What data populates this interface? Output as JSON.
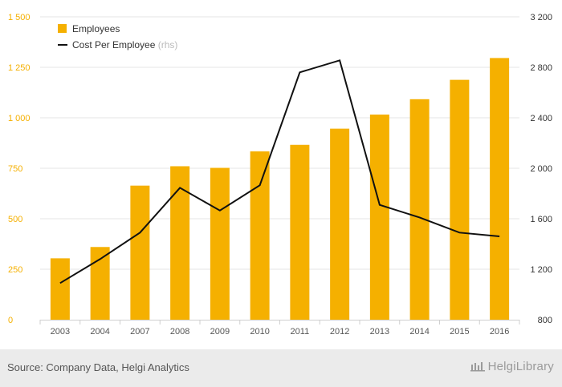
{
  "chart_data": {
    "type": "bar",
    "categories": [
      "2003",
      "2004",
      "2007",
      "2008",
      "2009",
      "2010",
      "2011",
      "2012",
      "2013",
      "2014",
      "2015",
      "2016"
    ],
    "series": [
      {
        "name": "Employees",
        "kind": "bar",
        "axis": "left",
        "values": [
          304,
          360,
          664,
          760,
          752,
          834,
          866,
          946,
          1016,
          1092,
          1188,
          1296
        ]
      },
      {
        "name": "Cost Per Employee",
        "kind": "line",
        "axis": "right",
        "values": [
          1090,
          1280,
          1490,
          1845,
          1665,
          1865,
          2760,
          2855,
          1710,
          1610,
          1490,
          1460
        ]
      }
    ],
    "legend": {
      "entries": [
        "Employees",
        "Cost Per Employee"
      ],
      "rhs_note": "(rhs)",
      "placement": "top-left"
    },
    "ylim_left": [
      0,
      1500
    ],
    "yticks_left": [
      "0",
      "250",
      "500",
      "750",
      "1 000",
      "1 250",
      "1 500"
    ],
    "ylim_right": [
      800,
      3200
    ],
    "yticks_right": [
      "800",
      "1 200",
      "1 600",
      "2 000",
      "2 400",
      "2 800",
      "3 200"
    ],
    "grid": true,
    "colors": {
      "bar": "#F5B000",
      "line": "#111111",
      "left_ticks": "#F5B000",
      "grid": "#e6e6e6"
    }
  },
  "footer": {
    "source": "Source: Company Data, Helgi Analytics",
    "brand": "HelgiLibrary"
  }
}
